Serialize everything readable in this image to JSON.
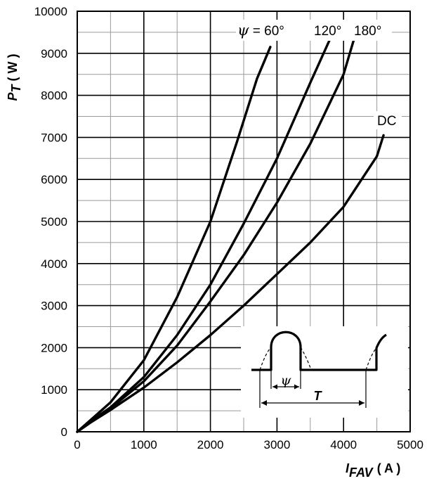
{
  "chart_data": {
    "type": "line",
    "x_axis": {
      "label_main": "I",
      "label_sub": "FAV",
      "unit": "( A )",
      "min": 0,
      "max": 5000,
      "ticks": [
        "0",
        "1000",
        "2000",
        "3000",
        "4000",
        "5000"
      ]
    },
    "y_axis": {
      "label_main": "P",
      "label_sub": "T",
      "unit": "( W )",
      "min": 0,
      "max": 10000,
      "ticks": [
        "0",
        "1000",
        "2000",
        "3000",
        "4000",
        "5000",
        "6000",
        "7000",
        "8000",
        "9000",
        "10000"
      ]
    },
    "grid": true,
    "series": [
      {
        "name": "60°",
        "x": [
          0,
          200,
          500,
          1000,
          1500,
          2000,
          2400,
          2700,
          2900
        ],
        "y": [
          0,
          280,
          700,
          1700,
          3200,
          5000,
          6900,
          8400,
          9150
        ]
      },
      {
        "name": "120°",
        "x": [
          0,
          200,
          500,
          1000,
          1500,
          2000,
          2500,
          3000,
          3500,
          3800
        ],
        "y": [
          0,
          250,
          580,
          1300,
          2300,
          3500,
          4950,
          6500,
          8300,
          9350
        ]
      },
      {
        "name": "180°",
        "x": [
          0,
          200,
          500,
          1000,
          1500,
          2000,
          2500,
          3000,
          3500,
          4000,
          4150
        ],
        "y": [
          0,
          240,
          560,
          1200,
          2050,
          3100,
          4200,
          5450,
          6850,
          8500,
          9300
        ]
      },
      {
        "name": "DC",
        "x": [
          0,
          200,
          500,
          1000,
          1500,
          2000,
          2500,
          3000,
          3500,
          4000,
          4500,
          4600
        ],
        "y": [
          0,
          220,
          520,
          1050,
          1650,
          2300,
          3000,
          3750,
          4500,
          5350,
          6550,
          7050
        ]
      }
    ],
    "curve_labels": {
      "psi_symbol": "ψ",
      "eq": " = 60°",
      "l120": "120°",
      "l180": "180°",
      "dc": "DC"
    },
    "inset": {
      "psi_symbol": "ψ",
      "period_symbol": "T"
    }
  }
}
